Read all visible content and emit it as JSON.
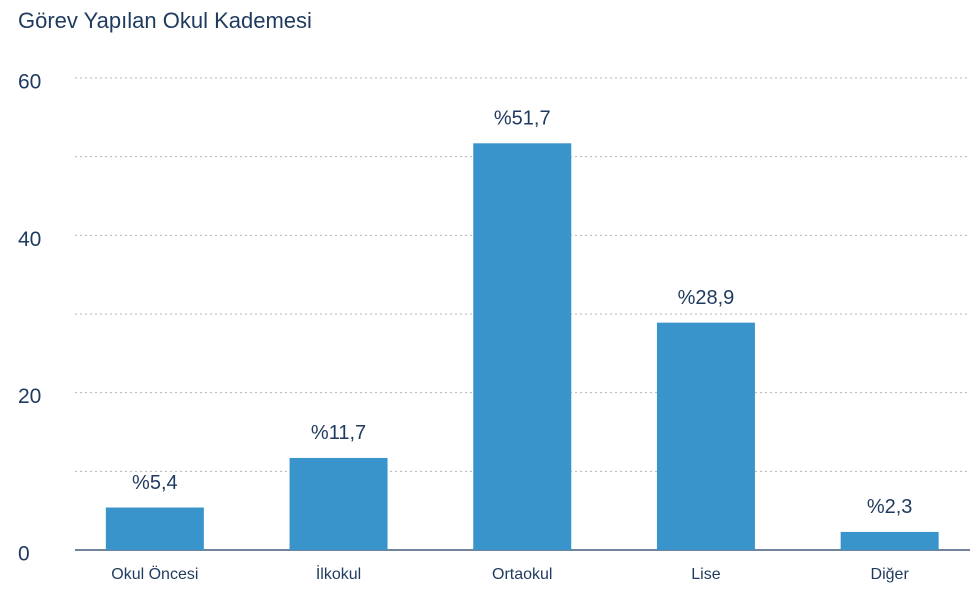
{
  "chart_data": {
    "type": "bar",
    "title": "Görev Yapılan Okul Kademesi",
    "categories": [
      "Okul Öncesi",
      "İlkokul",
      "Ortaokul",
      "Lise",
      "Diğer"
    ],
    "values": [
      5.4,
      11.7,
      51.7,
      28.9,
      2.3
    ],
    "value_labels": [
      "%5,4",
      "%11,7",
      "%51,7",
      "%28,9",
      "%2,3"
    ],
    "color": "#3a94cc",
    "ylim": [
      0,
      60
    ],
    "yticks": [
      0,
      20,
      40,
      60
    ],
    "minor_yticks": [
      10,
      30,
      50
    ],
    "grid": true
  }
}
